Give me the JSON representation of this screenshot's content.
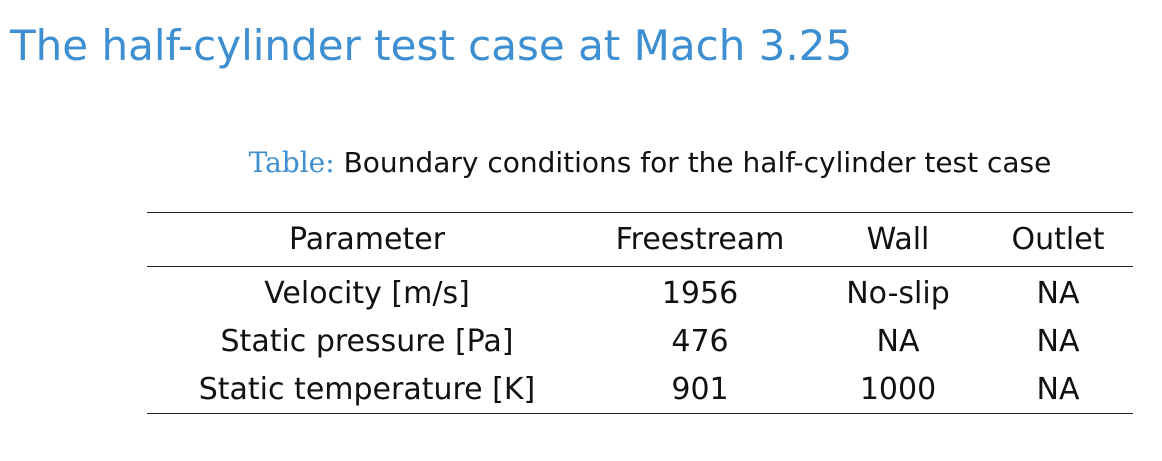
{
  "frame": {
    "title": "The half-cylinder test case at Mach 3.25"
  },
  "table": {
    "caption_label": "Table:",
    "caption_text": "Boundary conditions for the half-cylinder test case",
    "headers": [
      "Parameter",
      "Freestream",
      "Wall",
      "Outlet"
    ],
    "rows": [
      [
        "Velocity [m/s]",
        "1956",
        "No-slip",
        "NA"
      ],
      [
        "Static pressure [Pa]",
        "476",
        "NA",
        "NA"
      ],
      [
        "Static temperature [K]",
        "901",
        "1000",
        "NA"
      ]
    ]
  },
  "colors": {
    "accent": "#3d8fd1",
    "text": "#111111"
  }
}
